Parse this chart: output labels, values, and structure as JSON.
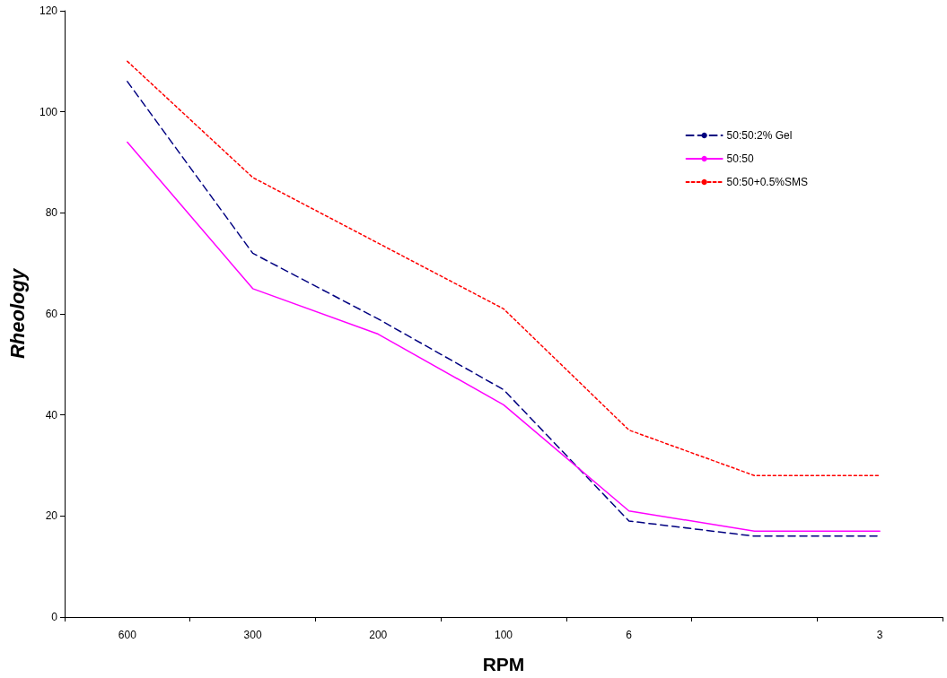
{
  "chart_data": {
    "type": "line",
    "xlabel": "RPM",
    "ylabel": "Rheology",
    "categories": [
      "600",
      "300",
      "200",
      "100",
      "6",
      null,
      "3"
    ],
    "ylim": [
      0,
      120
    ],
    "yticks": [
      0,
      20,
      40,
      60,
      80,
      100,
      120
    ],
    "grid": false,
    "legend": "top right",
    "marker": "none",
    "series": [
      {
        "name": "50:50:2% Gel",
        "color": "#000080",
        "line_style": "dashed",
        "values": [
          106,
          72,
          59,
          45,
          19,
          16,
          16
        ]
      },
      {
        "name": "50:50",
        "color": "#ff00ff",
        "line_style": "solid",
        "values": [
          94,
          65,
          56,
          42,
          21,
          17,
          17
        ]
      },
      {
        "name": "50:50+0.5%SMS",
        "color": "#ff0000",
        "line_style": "dotted",
        "values": [
          110,
          87,
          74,
          61,
          37,
          28,
          28
        ]
      }
    ]
  }
}
